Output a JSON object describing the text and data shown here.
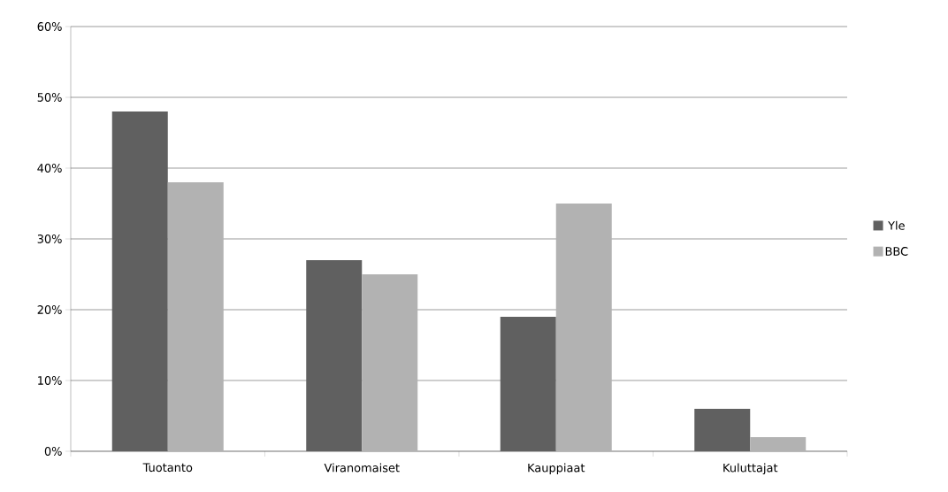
{
  "chart_data": {
    "type": "bar",
    "categories": [
      "Tuotanto",
      "Viranomaiset",
      "Kauppiaat",
      "Kuluttajat"
    ],
    "series": [
      {
        "name": "Yle",
        "color": "#606060",
        "values": [
          48,
          27,
          19,
          6
        ]
      },
      {
        "name": "BBC",
        "color": "#b2b2b2",
        "values": [
          38,
          25,
          35,
          2
        ]
      }
    ],
    "ylim": [
      0,
      60
    ],
    "yticks": [
      {
        "value": 0,
        "label": "0%"
      },
      {
        "value": 10,
        "label": "10%"
      },
      {
        "value": 20,
        "label": "20%"
      },
      {
        "value": 30,
        "label": "30%"
      },
      {
        "value": 40,
        "label": "40%"
      },
      {
        "value": 50,
        "label": "50%"
      },
      {
        "value": 60,
        "label": "60%"
      }
    ],
    "grid": "y",
    "legend": "right"
  }
}
